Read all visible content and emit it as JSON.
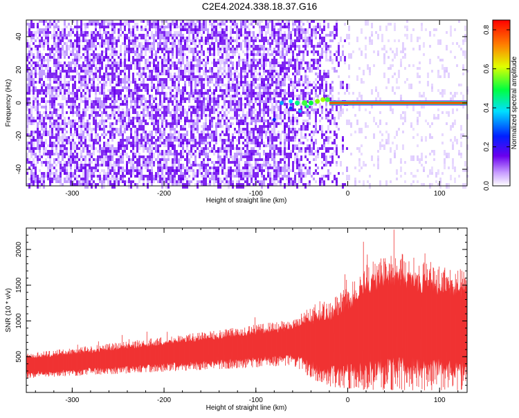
{
  "title": "C2E4.2024.338.18.37.G16",
  "chart_data": [
    {
      "type": "heatmap",
      "xlabel": "Height of straight line (km)",
      "ylabel": "Frequency (Hz)",
      "xlim": [
        -350,
        130
      ],
      "ylim": [
        -50,
        50
      ],
      "x_ticks": [
        -300,
        -200,
        -100,
        0,
        100
      ],
      "y_ticks": [
        -40,
        -20,
        0,
        20,
        40
      ],
      "colorbar": {
        "label": "Normalized spectral amplitude",
        "range": [
          0.0,
          0.85
        ],
        "ticks": [
          0.0,
          0.2,
          0.4,
          0.6,
          0.8
        ],
        "colormap": "white-purple-blue-cyan-green-yellow-red"
      },
      "features": {
        "noise_color": "#6a00ee",
        "noise_fade_start_x": -60,
        "noise_fade_end_x": 0,
        "signal_band_freq": 0,
        "signal_band_start_x": -20,
        "signal_band_end_x": 130,
        "signal_band_amplitude": 0.85
      }
    },
    {
      "type": "area",
      "xlabel": "Height of straight line (km)",
      "ylabel": "SNR (10 * v/v)",
      "xlim": [
        -350,
        130
      ],
      "ylim": [
        0,
        2300
      ],
      "x_ticks": [
        -300,
        -200,
        -100,
        0,
        100
      ],
      "y_ticks": [
        500,
        1000,
        1500,
        2000
      ],
      "color": "#f03333",
      "envelope": {
        "x": [
          -350,
          -300,
          -250,
          -200,
          -150,
          -100,
          -60,
          -40,
          -20,
          0,
          20,
          40,
          60,
          80,
          100,
          130
        ],
        "upper": [
          550,
          620,
          700,
          780,
          860,
          950,
          1020,
          1200,
          1300,
          1500,
          1800,
          1900,
          1950,
          1850,
          1800,
          1700
        ],
        "lower": [
          200,
          230,
          260,
          290,
          320,
          350,
          380,
          200,
          80,
          50,
          30,
          30,
          30,
          30,
          30,
          30
        ]
      }
    }
  ]
}
